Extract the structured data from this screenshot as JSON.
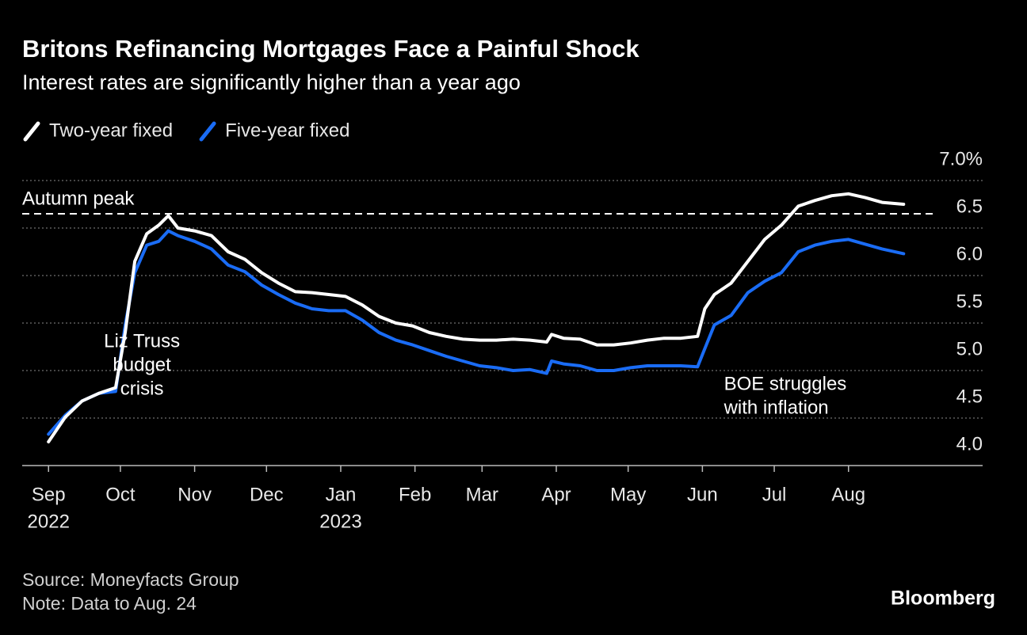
{
  "chart_data": {
    "type": "line",
    "title": "Britons Refinancing Mortgages Face a Painful Shock",
    "subtitle": "Interest rates are significantly higher than a year ago",
    "x": [
      "2022-09-01",
      "2022-09-08",
      "2022-09-15",
      "2022-09-22",
      "2022-09-29",
      "2022-10-03",
      "2022-10-07",
      "2022-10-12",
      "2022-10-17",
      "2022-10-21",
      "2022-10-25",
      "2022-11-01",
      "2022-11-08",
      "2022-11-15",
      "2022-11-22",
      "2022-11-29",
      "2022-12-06",
      "2022-12-13",
      "2022-12-20",
      "2022-12-27",
      "2023-01-03",
      "2023-01-10",
      "2023-01-17",
      "2023-01-24",
      "2023-01-31",
      "2023-02-07",
      "2023-02-14",
      "2023-02-21",
      "2023-02-28",
      "2023-03-07",
      "2023-03-14",
      "2023-03-21",
      "2023-03-28",
      "2023-03-30",
      "2023-04-04",
      "2023-04-11",
      "2023-04-18",
      "2023-04-25",
      "2023-05-02",
      "2023-05-09",
      "2023-05-16",
      "2023-05-23",
      "2023-05-30",
      "2023-06-02",
      "2023-06-06",
      "2023-06-13",
      "2023-06-20",
      "2023-06-27",
      "2023-07-04",
      "2023-07-11",
      "2023-07-18",
      "2023-07-25",
      "2023-08-01",
      "2023-08-08",
      "2023-08-15",
      "2023-08-24"
    ],
    "series": [
      {
        "name": "Two-year fixed",
        "color": "#ffffff",
        "values": [
          4.25,
          4.51,
          4.68,
          4.76,
          4.82,
          5.4,
          6.15,
          6.44,
          6.53,
          6.63,
          6.5,
          6.47,
          6.42,
          6.25,
          6.17,
          6.03,
          5.92,
          5.83,
          5.82,
          5.8,
          5.78,
          5.69,
          5.57,
          5.5,
          5.47,
          5.4,
          5.36,
          5.33,
          5.32,
          5.32,
          5.33,
          5.32,
          5.3,
          5.38,
          5.34,
          5.33,
          5.27,
          5.27,
          5.29,
          5.32,
          5.34,
          5.34,
          5.36,
          5.65,
          5.8,
          5.92,
          6.15,
          6.38,
          6.53,
          6.73,
          6.79,
          6.84,
          6.86,
          6.82,
          6.77,
          6.75
        ]
      },
      {
        "name": "Five-year fixed",
        "color": "#1a6cf5",
        "values": [
          4.33,
          4.53,
          4.68,
          4.76,
          4.78,
          5.48,
          6.03,
          6.32,
          6.36,
          6.47,
          6.42,
          6.36,
          6.28,
          6.11,
          6.04,
          5.9,
          5.8,
          5.71,
          5.65,
          5.63,
          5.63,
          5.53,
          5.4,
          5.32,
          5.27,
          5.21,
          5.15,
          5.1,
          5.05,
          5.03,
          5.0,
          5.01,
          4.97,
          5.1,
          5.07,
          5.05,
          5.0,
          5.0,
          5.03,
          5.05,
          5.05,
          5.05,
          5.04,
          5.23,
          5.48,
          5.58,
          5.82,
          5.94,
          6.03,
          6.25,
          6.32,
          6.36,
          6.38,
          6.33,
          6.28,
          6.23
        ]
      }
    ],
    "xlim": [
      "2022-08-21",
      "2023-09-26"
    ],
    "xticks": [
      {
        "value": "2022-09-01",
        "label": "Sep",
        "year": "2022"
      },
      {
        "value": "2022-10-01",
        "label": "Oct"
      },
      {
        "value": "2022-11-01",
        "label": "Nov"
      },
      {
        "value": "2022-12-01",
        "label": "Dec"
      },
      {
        "value": "2023-01-01",
        "label": "Jan",
        "year": "2023"
      },
      {
        "value": "2023-02-01",
        "label": "Feb"
      },
      {
        "value": "2023-03-01",
        "label": "Mar"
      },
      {
        "value": "2023-04-01",
        "label": "Apr"
      },
      {
        "value": "2023-05-01",
        "label": "May"
      },
      {
        "value": "2023-06-01",
        "label": "Jun"
      },
      {
        "value": "2023-07-01",
        "label": "Jul"
      },
      {
        "value": "2023-08-01",
        "label": "Aug"
      }
    ],
    "ylim": [
      4.0,
      7.0
    ],
    "yticks": [
      {
        "value": 4.0,
        "label": "4.0"
      },
      {
        "value": 4.5,
        "label": "4.5"
      },
      {
        "value": 5.0,
        "label": "5.0"
      },
      {
        "value": 5.5,
        "label": "5.5"
      },
      {
        "value": 6.0,
        "label": "6.0"
      },
      {
        "value": 6.5,
        "label": "6.5"
      },
      {
        "value": 7.0,
        "label": "7.0%"
      }
    ],
    "grid": true,
    "reference_line": {
      "label": "Autumn peak",
      "value": 6.65
    },
    "annotations": [
      {
        "lines": [
          "Liz Truss",
          "budget",
          "crisis"
        ],
        "date": "2022-10-10",
        "value": 5.3
      },
      {
        "lines": [
          "BOE struggles",
          "with inflation"
        ],
        "date": "2023-06-10",
        "value": 4.85
      }
    ],
    "source": "Source: Moneyfacts Group",
    "note": "Note: Data to Aug. 24",
    "brand": "Bloomberg"
  }
}
